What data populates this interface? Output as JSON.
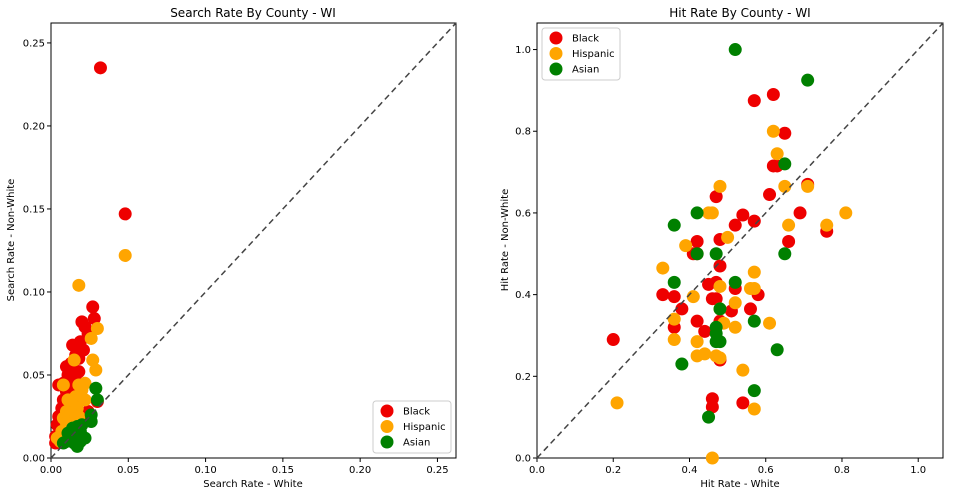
{
  "colors": {
    "Black": "#ee0000",
    "Hispanic": "#ffa500",
    "Asian": "#008000",
    "diagonal": "#444444"
  },
  "chart_data": [
    {
      "type": "scatter",
      "title": "Search Rate By County - WI",
      "xlabel": "Search Rate - White",
      "ylabel": "Search Rate - Non-White",
      "xlim": [
        0,
        0.262
      ],
      "ylim": [
        0,
        0.262
      ],
      "xticks": [
        0,
        0.05,
        0.1,
        0.15,
        0.2,
        0.25
      ],
      "xtick_labels": [
        "0.00",
        "0.05",
        "0.10",
        "0.15",
        "0.20",
        "0.25"
      ],
      "yticks": [
        0,
        0.05,
        0.1,
        0.15,
        0.2,
        0.25
      ],
      "ytick_labels": [
        "0.00",
        "0.05",
        "0.10",
        "0.15",
        "0.20",
        "0.25"
      ],
      "diagonal": true,
      "legend_position": "lower-right",
      "series": [
        {
          "name": "Black",
          "points": [
            [
              0.032,
              0.235
            ],
            [
              0.048,
              0.147
            ],
            [
              0.027,
              0.091
            ],
            [
              0.028,
              0.084
            ],
            [
              0.02,
              0.082
            ],
            [
              0.022,
              0.079
            ],
            [
              0.024,
              0.075
            ],
            [
              0.014,
              0.068
            ],
            [
              0.019,
              0.07
            ],
            [
              0.021,
              0.065
            ],
            [
              0.016,
              0.062
            ],
            [
              0.018,
              0.06
            ],
            [
              0.01,
              0.055
            ],
            [
              0.013,
              0.057
            ],
            [
              0.015,
              0.053
            ],
            [
              0.011,
              0.05
            ],
            [
              0.016,
              0.05
            ],
            [
              0.018,
              0.052
            ],
            [
              0.008,
              0.045
            ],
            [
              0.005,
              0.044
            ],
            [
              0.012,
              0.046
            ],
            [
              0.014,
              0.047
            ],
            [
              0.01,
              0.04
            ],
            [
              0.012,
              0.042
            ],
            [
              0.015,
              0.038
            ],
            [
              0.008,
              0.035
            ],
            [
              0.011,
              0.035
            ],
            [
              0.013,
              0.033
            ],
            [
              0.007,
              0.03
            ],
            [
              0.01,
              0.028
            ],
            [
              0.012,
              0.031
            ],
            [
              0.005,
              0.025
            ],
            [
              0.008,
              0.024
            ],
            [
              0.01,
              0.022
            ],
            [
              0.004,
              0.02
            ],
            [
              0.006,
              0.018
            ],
            [
              0.008,
              0.016
            ],
            [
              0.003,
              0.013
            ],
            [
              0.005,
              0.012
            ],
            [
              0.003,
              0.009
            ],
            [
              0.03,
              0.034
            ],
            [
              0.02,
              0.025
            ],
            [
              0.024,
              0.028
            ],
            [
              0.017,
              0.02
            ],
            [
              0.014,
              0.015
            ]
          ]
        },
        {
          "name": "Hispanic",
          "points": [
            [
              0.048,
              0.122
            ],
            [
              0.018,
              0.104
            ],
            [
              0.03,
              0.078
            ],
            [
              0.026,
              0.072
            ],
            [
              0.027,
              0.059
            ],
            [
              0.015,
              0.059
            ],
            [
              0.029,
              0.053
            ],
            [
              0.008,
              0.044
            ],
            [
              0.022,
              0.045
            ],
            [
              0.018,
              0.044
            ],
            [
              0.02,
              0.041
            ],
            [
              0.016,
              0.037
            ],
            [
              0.019,
              0.036
            ],
            [
              0.022,
              0.035
            ],
            [
              0.011,
              0.035
            ],
            [
              0.014,
              0.032
            ],
            [
              0.017,
              0.03
            ],
            [
              0.01,
              0.028
            ],
            [
              0.013,
              0.027
            ],
            [
              0.018,
              0.025
            ],
            [
              0.008,
              0.024
            ],
            [
              0.01,
              0.021
            ],
            [
              0.014,
              0.02
            ],
            [
              0.012,
              0.018
            ],
            [
              0.007,
              0.016
            ],
            [
              0.009,
              0.014
            ],
            [
              0.004,
              0.012
            ],
            [
              0.006,
              0.01
            ],
            [
              0.011,
              0.012
            ],
            [
              0.015,
              0.015
            ]
          ]
        },
        {
          "name": "Asian",
          "points": [
            [
              0.029,
              0.042
            ],
            [
              0.03,
              0.035
            ],
            [
              0.026,
              0.026
            ],
            [
              0.026,
              0.022
            ],
            [
              0.02,
              0.02
            ],
            [
              0.017,
              0.019
            ],
            [
              0.019,
              0.016
            ],
            [
              0.014,
              0.018
            ],
            [
              0.016,
              0.013
            ],
            [
              0.013,
              0.013
            ],
            [
              0.012,
              0.011
            ],
            [
              0.015,
              0.009
            ],
            [
              0.017,
              0.007
            ],
            [
              0.01,
              0.01
            ],
            [
              0.008,
              0.009
            ],
            [
              0.019,
              0.01
            ],
            [
              0.022,
              0.012
            ],
            [
              0.011,
              0.015
            ]
          ]
        }
      ]
    },
    {
      "type": "scatter",
      "title": "Hit Rate By County - WI",
      "xlabel": "Hit Rate - White",
      "ylabel": "Hit Rate - Non-White",
      "xlim": [
        0,
        1.065
      ],
      "ylim": [
        0,
        1.065
      ],
      "xticks": [
        0,
        0.2,
        0.4,
        0.6,
        0.8,
        1.0
      ],
      "xtick_labels": [
        "0.0",
        "0.2",
        "0.4",
        "0.6",
        "0.8",
        "1.0"
      ],
      "yticks": [
        0,
        0.2,
        0.4,
        0.6,
        0.8,
        1.0
      ],
      "ytick_labels": [
        "0.0",
        "0.2",
        "0.4",
        "0.6",
        "0.8",
        "1.0"
      ],
      "diagonal": true,
      "legend_position": "upper-left",
      "series": [
        {
          "name": "Black",
          "points": [
            [
              0.62,
              0.89
            ],
            [
              0.57,
              0.875
            ],
            [
              0.65,
              0.795
            ],
            [
              0.62,
              0.715
            ],
            [
              0.63,
              0.715
            ],
            [
              0.71,
              0.67
            ],
            [
              0.61,
              0.645
            ],
            [
              0.47,
              0.64
            ],
            [
              0.69,
              0.6
            ],
            [
              0.54,
              0.595
            ],
            [
              0.52,
              0.57
            ],
            [
              0.57,
              0.58
            ],
            [
              0.76,
              0.555
            ],
            [
              0.48,
              0.535
            ],
            [
              0.42,
              0.53
            ],
            [
              0.66,
              0.53
            ],
            [
              0.41,
              0.5
            ],
            [
              0.42,
              0.5
            ],
            [
              0.48,
              0.47
            ],
            [
              0.47,
              0.43
            ],
            [
              0.45,
              0.425
            ],
            [
              0.52,
              0.415
            ],
            [
              0.58,
              0.4
            ],
            [
              0.33,
              0.4
            ],
            [
              0.36,
              0.395
            ],
            [
              0.46,
              0.39
            ],
            [
              0.47,
              0.39
            ],
            [
              0.51,
              0.36
            ],
            [
              0.56,
              0.365
            ],
            [
              0.38,
              0.365
            ],
            [
              0.42,
              0.335
            ],
            [
              0.48,
              0.335
            ],
            [
              0.44,
              0.31
            ],
            [
              0.36,
              0.32
            ],
            [
              0.48,
              0.24
            ],
            [
              0.2,
              0.29
            ],
            [
              0.46,
              0.145
            ],
            [
              0.46,
              0.125
            ],
            [
              0.54,
              0.135
            ]
          ]
        },
        {
          "name": "Hispanic",
          "points": [
            [
              0.62,
              0.8
            ],
            [
              0.63,
              0.745
            ],
            [
              0.65,
              0.665
            ],
            [
              0.48,
              0.665
            ],
            [
              0.71,
              0.665
            ],
            [
              0.45,
              0.6
            ],
            [
              0.46,
              0.6
            ],
            [
              0.81,
              0.6
            ],
            [
              0.76,
              0.57
            ],
            [
              0.66,
              0.57
            ],
            [
              0.5,
              0.54
            ],
            [
              0.39,
              0.52
            ],
            [
              0.33,
              0.465
            ],
            [
              0.57,
              0.455
            ],
            [
              0.48,
              0.42
            ],
            [
              0.57,
              0.415
            ],
            [
              0.56,
              0.415
            ],
            [
              0.41,
              0.395
            ],
            [
              0.52,
              0.38
            ],
            [
              0.48,
              0.365
            ],
            [
              0.36,
              0.34
            ],
            [
              0.49,
              0.33
            ],
            [
              0.61,
              0.33
            ],
            [
              0.52,
              0.32
            ],
            [
              0.42,
              0.285
            ],
            [
              0.36,
              0.29
            ],
            [
              0.42,
              0.25
            ],
            [
              0.44,
              0.255
            ],
            [
              0.47,
              0.25
            ],
            [
              0.48,
              0.245
            ],
            [
              0.54,
              0.215
            ],
            [
              0.21,
              0.135
            ],
            [
              0.57,
              0.12
            ],
            [
              0.46,
              0.0
            ]
          ]
        },
        {
          "name": "Asian",
          "points": [
            [
              0.52,
              1.0
            ],
            [
              0.71,
              0.925
            ],
            [
              0.65,
              0.72
            ],
            [
              0.42,
              0.6
            ],
            [
              0.36,
              0.57
            ],
            [
              0.42,
              0.5
            ],
            [
              0.47,
              0.5
            ],
            [
              0.65,
              0.5
            ],
            [
              0.36,
              0.43
            ],
            [
              0.52,
              0.43
            ],
            [
              0.48,
              0.365
            ],
            [
              0.57,
              0.335
            ],
            [
              0.47,
              0.32
            ],
            [
              0.47,
              0.305
            ],
            [
              0.47,
              0.285
            ],
            [
              0.48,
              0.285
            ],
            [
              0.63,
              0.265
            ],
            [
              0.38,
              0.23
            ],
            [
              0.57,
              0.165
            ],
            [
              0.45,
              0.1
            ]
          ]
        }
      ]
    }
  ]
}
